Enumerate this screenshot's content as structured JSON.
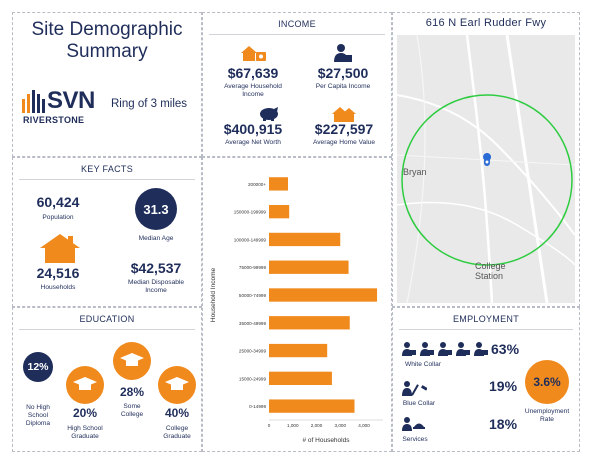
{
  "title": {
    "line1": "Site Demographic",
    "line2": "Summary"
  },
  "brand": {
    "name": "SVN",
    "sub": "RIVERSTONE",
    "ring": "Ring of 3 miles"
  },
  "income": {
    "header": "INCOME",
    "avg_household_value": "$67,639",
    "avg_household_label1": "Average Household",
    "avg_household_label2": "Income",
    "per_capita_value": "$27,500",
    "per_capita_label": "Per Capita Income",
    "net_worth_value": "$400,915",
    "net_worth_label": "Average Net Worth",
    "home_value_value": "$227,597",
    "home_value_label": "Average Home Value"
  },
  "map": {
    "title": "616 N Earl Rudder Fwy",
    "label_bryan": "Bryan",
    "label_cs1": "College",
    "label_cs2": "Station"
  },
  "key_facts": {
    "header": "KEY FACTS",
    "population_value": "60,424",
    "population_label": "Population",
    "median_age_value": "31.3",
    "median_age_label": "Median Age",
    "households_value": "24,516",
    "households_label": "Households",
    "median_income_value": "$42,537",
    "median_income_label1": "Median Disposable",
    "median_income_label2": "Income"
  },
  "education": {
    "header": "EDUCATION",
    "no_hs_value": "12%",
    "no_hs_label1": "No High",
    "no_hs_label2": "School",
    "no_hs_label3": "Diploma",
    "hs_value": "20%",
    "hs_label1": "High School",
    "hs_label2": "Graduate",
    "some_college_value": "28%",
    "some_college_label1": "Some",
    "some_college_label2": "College",
    "college_value": "40%",
    "college_label1": "College",
    "college_label2": "Graduate"
  },
  "employment": {
    "header": "EMPLOYMENT",
    "white_collar_value": "63%",
    "white_collar_label": "White Collar",
    "blue_collar_value": "19%",
    "blue_collar_label": "Blue Collar",
    "services_value": "18%",
    "services_label": "Services",
    "unemployment_value": "3.6%",
    "unemployment_label1": "Unemployment",
    "unemployment_label2": "Rate"
  },
  "colors": {
    "navy": "#1f2d5a",
    "orange": "#f08a1d",
    "green": "#2ecc40",
    "map_bg": "#e9e9e9"
  },
  "chart_data": {
    "type": "bar",
    "orientation": "horizontal",
    "categories": [
      "200000+",
      "150000-199999",
      "100000-149999",
      "75000-99999",
      "50000-74999",
      "35000-49999",
      "25000-34999",
      "15000-24999",
      "0-14999"
    ],
    "values": [
      800,
      850,
      3000,
      3350,
      4550,
      3400,
      2450,
      2650,
      3600
    ],
    "xlabel": "# of Households",
    "ylabel": "Household Income",
    "xlim": [
      0,
      4800
    ],
    "xticks": [
      "0",
      "1,000",
      "2,000",
      "3,000",
      "4,000"
    ],
    "xtick_values": [
      0,
      1000,
      2000,
      3000,
      4000
    ],
    "color": "#f08a1d"
  }
}
